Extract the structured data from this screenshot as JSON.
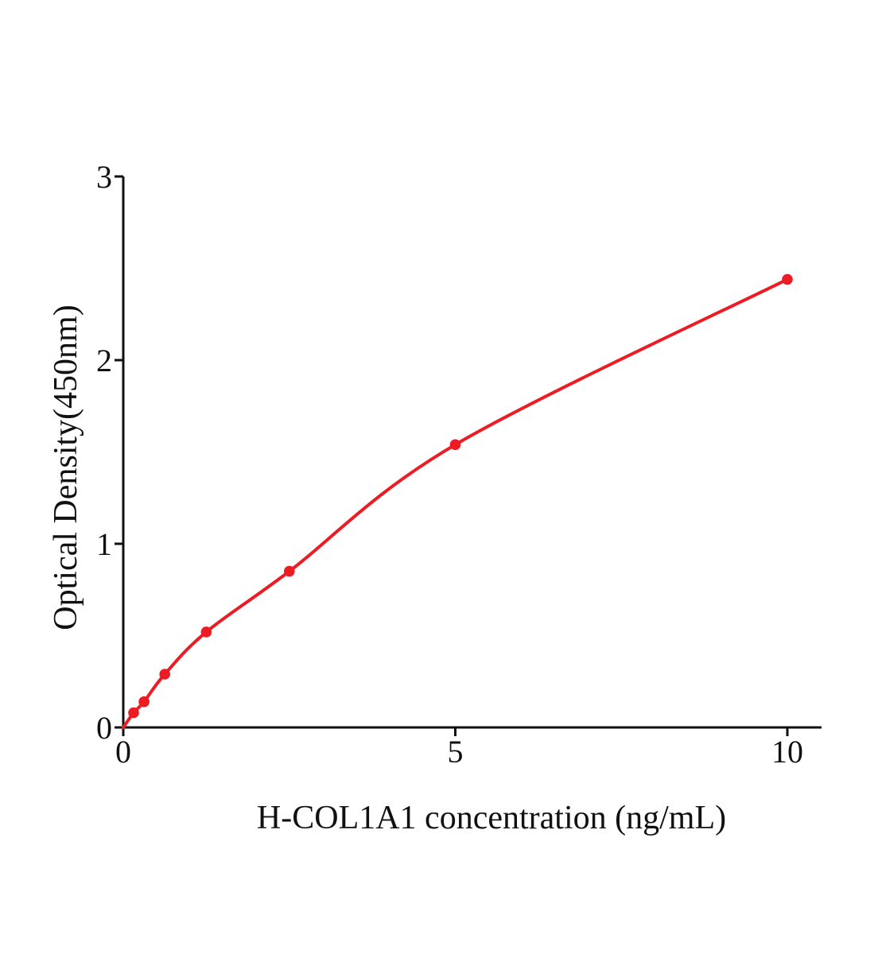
{
  "chart_data": {
    "type": "scatter",
    "subtype": "fitted-standard-curve",
    "title": "",
    "xlabel": "H-COL1A1 concentration (ng/mL)",
    "ylabel": "Optical Density(450nm)",
    "series": [
      {
        "x": [
          0.156,
          0.3125,
          0.625,
          1.25,
          2.5,
          5,
          10
        ],
        "y": [
          0.08,
          0.14,
          0.29,
          0.52,
          0.85,
          1.54,
          2.44
        ],
        "marker": "circle",
        "color": "#ed1c24"
      }
    ],
    "curve_start": {
      "x": 0,
      "y": 0
    },
    "x_ticks": [
      0,
      5,
      10
    ],
    "x_tick_labels": [
      "0",
      "5",
      "10"
    ],
    "y_ticks": [
      0,
      1,
      2,
      3
    ],
    "y_tick_labels": [
      "0",
      "1",
      "2",
      "3"
    ],
    "xlim": [
      0,
      10.5
    ],
    "ylim": [
      0,
      3
    ],
    "grid": false,
    "legend": false,
    "colors": {
      "curve": "#ed1c24",
      "marker": "#ed1c24",
      "axis": "#111111",
      "text": "#111111",
      "background": "#ffffff"
    }
  }
}
